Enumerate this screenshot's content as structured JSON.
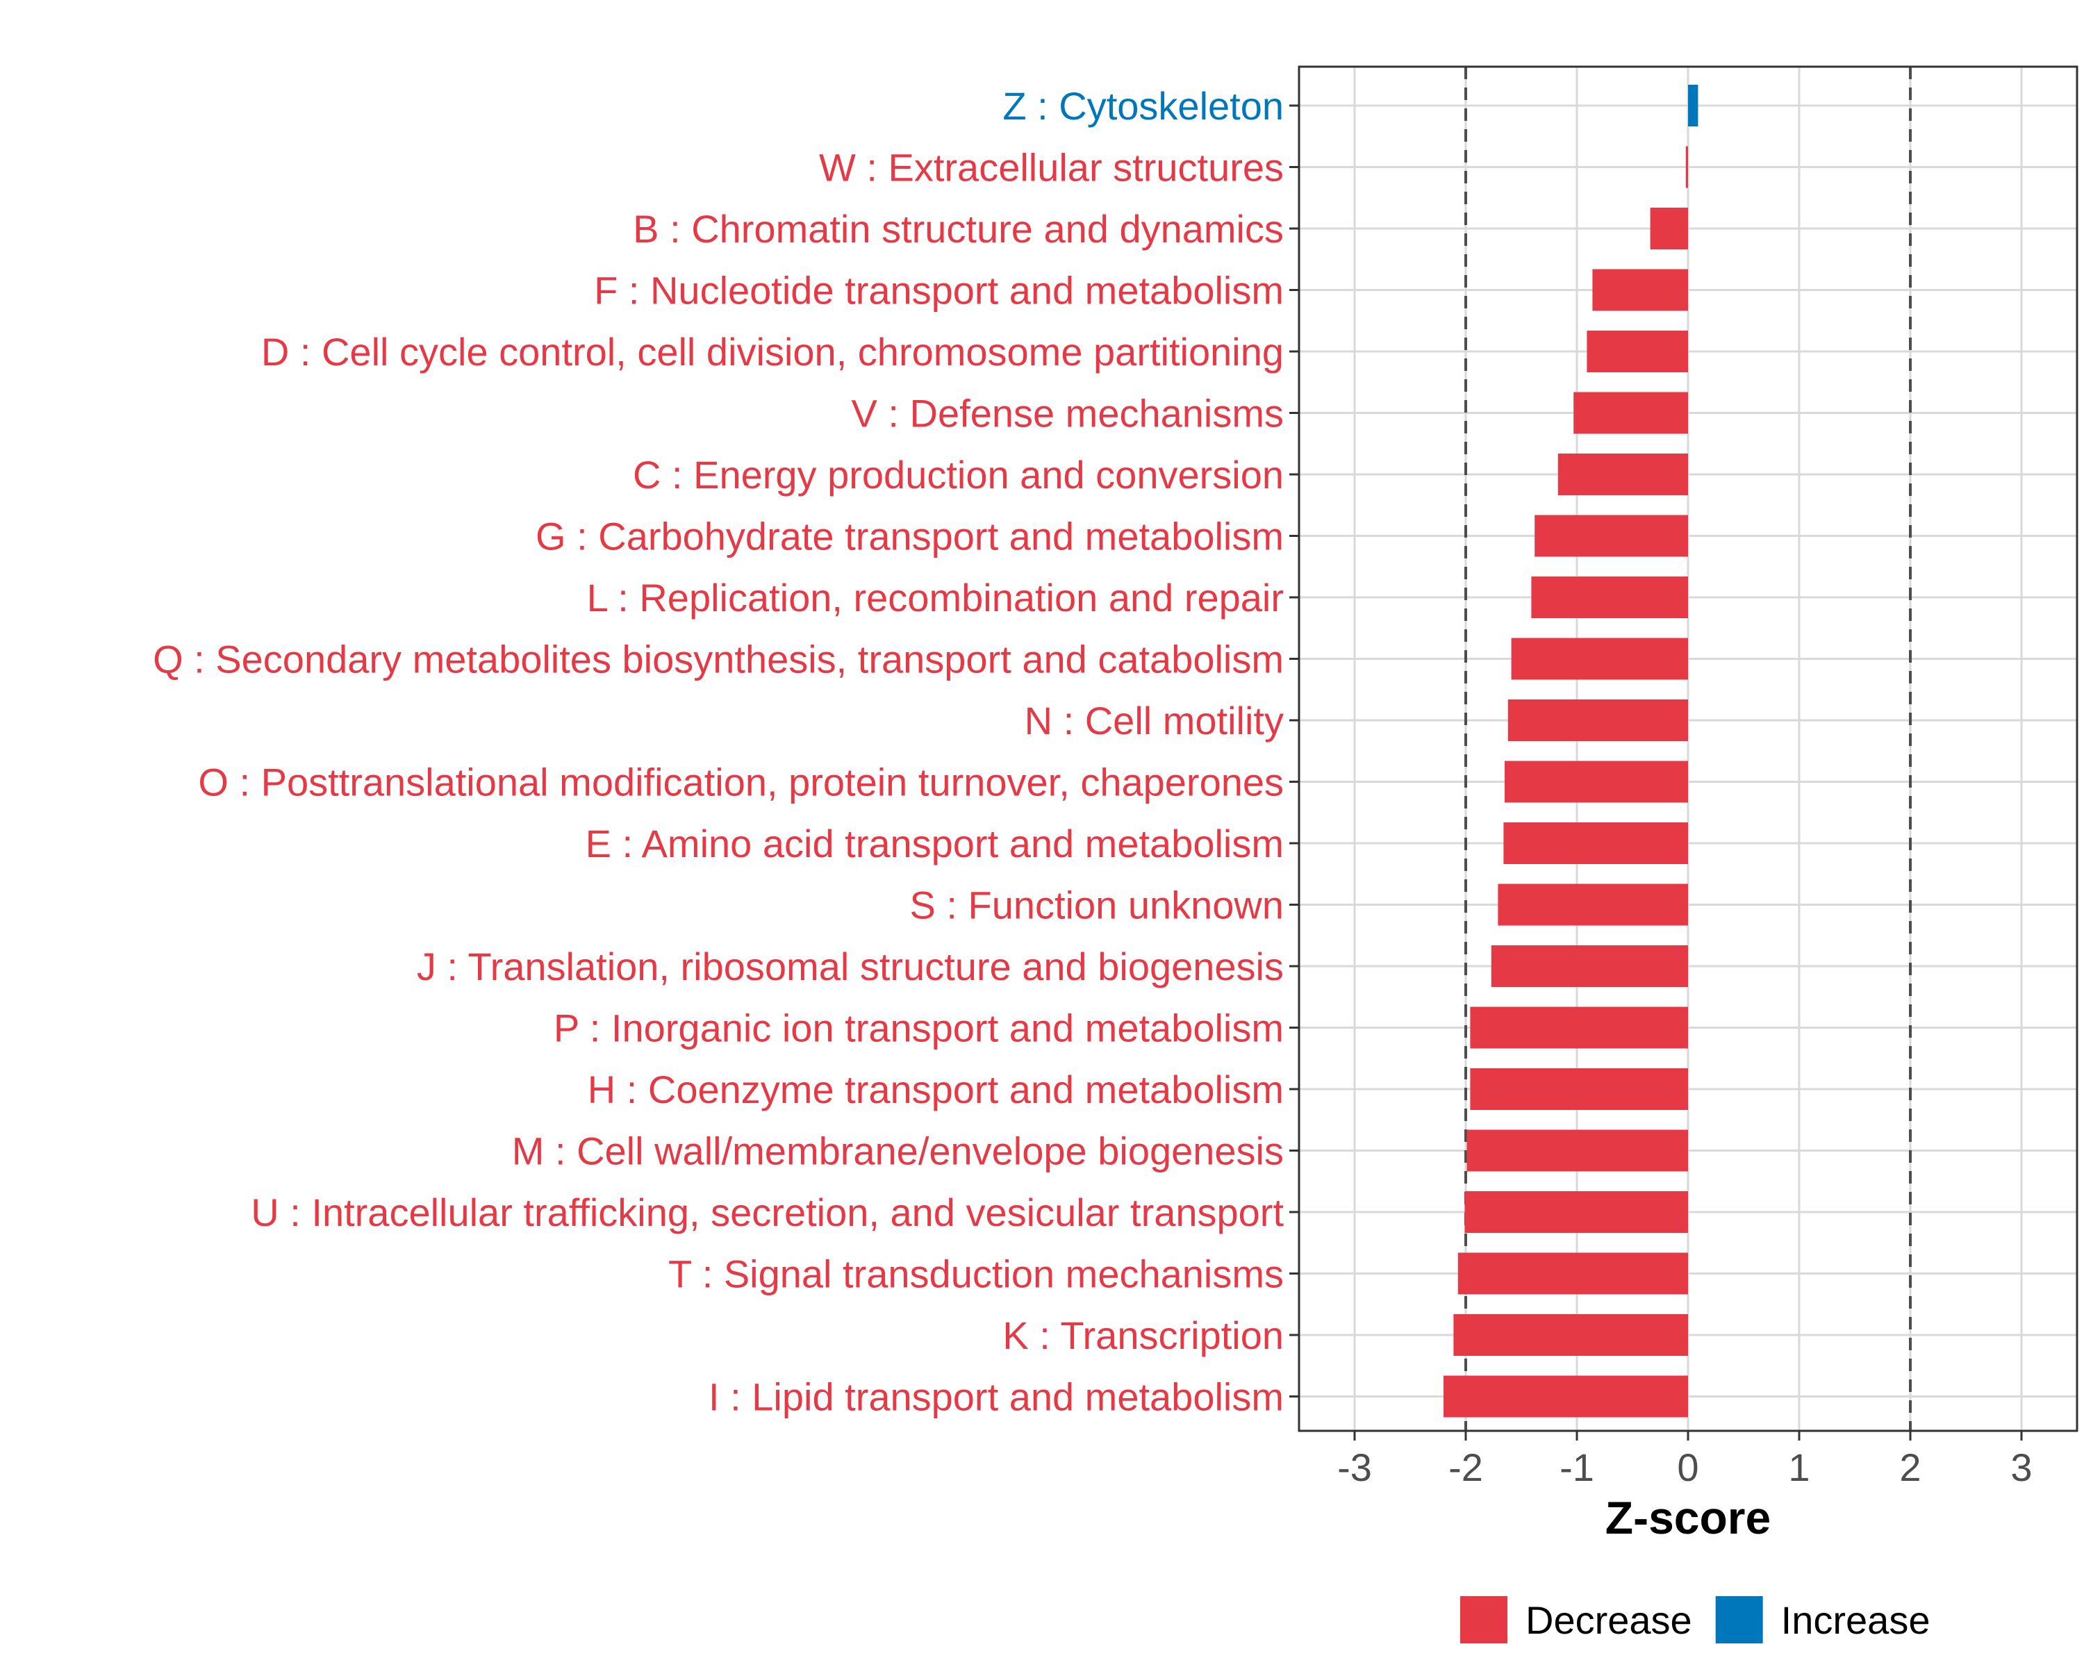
{
  "colors": {
    "decrease": "#e63946",
    "increase": "#0077bb"
  },
  "chart_data": {
    "type": "bar",
    "orientation": "horizontal",
    "xlabel": "Z-score",
    "xlim": [
      -3.5,
      3.5
    ],
    "x_ticks": [
      -3,
      -2,
      -1,
      0,
      1,
      2,
      3
    ],
    "x_tick_labels": [
      "-3",
      "-2",
      "-1",
      "0",
      "1",
      "2",
      "3"
    ],
    "reference_lines": [
      -2,
      2
    ],
    "grid": true,
    "legend": {
      "position": "bottom",
      "entries": [
        {
          "label": "Decrease",
          "color_key": "decrease"
        },
        {
          "label": "Increase",
          "color_key": "increase"
        }
      ]
    },
    "bars": [
      {
        "label": "Z : Cytoskeleton",
        "value": 0.09,
        "direction": "increase"
      },
      {
        "label": "W : Extracellular structures",
        "value": -0.02,
        "direction": "decrease"
      },
      {
        "label": "B : Chromatin structure and dynamics",
        "value": -0.34,
        "direction": "decrease"
      },
      {
        "label": "F : Nucleotide transport and metabolism",
        "value": -0.86,
        "direction": "decrease"
      },
      {
        "label": "D : Cell cycle control, cell division, chromosome partitioning",
        "value": -0.91,
        "direction": "decrease"
      },
      {
        "label": "V : Defense mechanisms",
        "value": -1.03,
        "direction": "decrease"
      },
      {
        "label": "C : Energy production and conversion",
        "value": -1.17,
        "direction": "decrease"
      },
      {
        "label": "G : Carbohydrate transport and metabolism",
        "value": -1.38,
        "direction": "decrease"
      },
      {
        "label": "L : Replication, recombination and repair",
        "value": -1.41,
        "direction": "decrease"
      },
      {
        "label": "Q : Secondary metabolites biosynthesis, transport and catabolism",
        "value": -1.59,
        "direction": "decrease"
      },
      {
        "label": "N : Cell motility",
        "value": -1.62,
        "direction": "decrease"
      },
      {
        "label": "O : Posttranslational modification, protein turnover, chaperones",
        "value": -1.65,
        "direction": "decrease"
      },
      {
        "label": "E : Amino acid transport and metabolism",
        "value": -1.66,
        "direction": "decrease"
      },
      {
        "label": "S : Function unknown",
        "value": -1.71,
        "direction": "decrease"
      },
      {
        "label": "J : Translation, ribosomal structure and biogenesis",
        "value": -1.77,
        "direction": "decrease"
      },
      {
        "label": "P : Inorganic ion transport and metabolism",
        "value": -1.96,
        "direction": "decrease"
      },
      {
        "label": "H : Coenzyme transport and metabolism",
        "value": -1.96,
        "direction": "decrease"
      },
      {
        "label": "M : Cell wall/membrane/envelope biogenesis",
        "value": -1.99,
        "direction": "decrease"
      },
      {
        "label": "U : Intracellular trafficking, secretion, and vesicular transport",
        "value": -2.01,
        "direction": "decrease"
      },
      {
        "label": "T : Signal transduction mechanisms",
        "value": -2.07,
        "direction": "decrease"
      },
      {
        "label": "K : Transcription",
        "value": -2.11,
        "direction": "decrease"
      },
      {
        "label": "I : Lipid transport and metabolism",
        "value": -2.2,
        "direction": "decrease"
      }
    ]
  }
}
